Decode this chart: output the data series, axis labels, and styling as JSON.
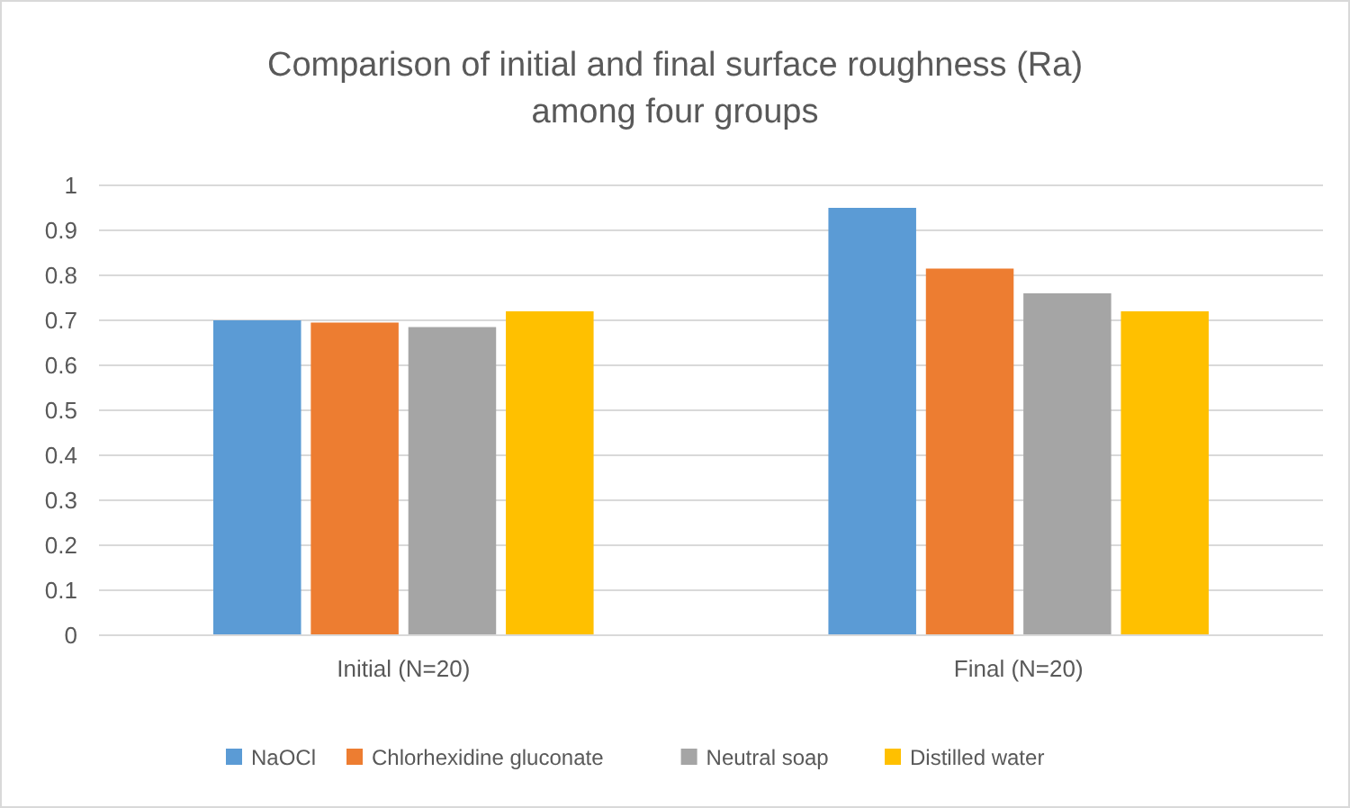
{
  "chart_data": {
    "type": "bar",
    "title": "Comparison of initial and final surface roughness (Ra) among four groups",
    "categories": [
      "Initial (N=20)",
      "Final (N=20)"
    ],
    "series": [
      {
        "name": "NaOCl",
        "color": "#5b9bd5",
        "values": [
          0.7,
          0.95
        ]
      },
      {
        "name": "Chlorhexidine gluconate",
        "color": "#ed7d31",
        "values": [
          0.695,
          0.815
        ]
      },
      {
        "name": "Neutral soap",
        "color": "#a5a5a5",
        "values": [
          0.685,
          0.76
        ]
      },
      {
        "name": "Distilled water",
        "color": "#ffc000",
        "values": [
          0.72,
          0.72
        ]
      }
    ],
    "ylim": [
      0,
      1
    ],
    "yticks": [
      0,
      0.1,
      0.2,
      0.3,
      0.4,
      0.5,
      0.6,
      0.7,
      0.8,
      0.9,
      1
    ],
    "grid": "y",
    "legend": "bottom"
  }
}
